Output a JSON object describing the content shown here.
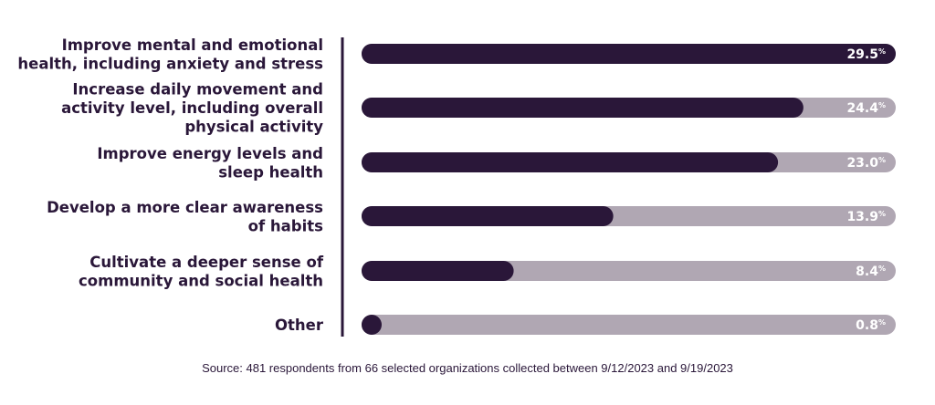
{
  "chart_data": {
    "type": "bar",
    "orientation": "horizontal",
    "categories": [
      [
        "Improve mental and emotional",
        "health, including anxiety and stress"
      ],
      [
        "Increase daily movement and",
        "activity level, including overall",
        "physical activity"
      ],
      [
        "Improve energy levels and",
        "sleep health"
      ],
      [
        "Develop a more clear awareness",
        "of habits"
      ],
      [
        "Cultivate a deeper sense of",
        "community and social health"
      ],
      [
        "Other"
      ]
    ],
    "values": [
      29.5,
      24.4,
      23.0,
      13.9,
      8.4,
      0.8
    ],
    "value_labels": [
      "29.5",
      "24.4",
      "23.0",
      "13.9",
      "8.4",
      "0.8"
    ],
    "unit": "%",
    "xlim": [
      0,
      29.5
    ],
    "colors": {
      "bar": "#2a1739",
      "track": "#b0a7b3",
      "label": "#2a1739",
      "value_text": "#ffffff"
    }
  },
  "source": "Source: 481 respondents from 66 selected organizations collected between 9/12/2023 and 9/19/2023"
}
